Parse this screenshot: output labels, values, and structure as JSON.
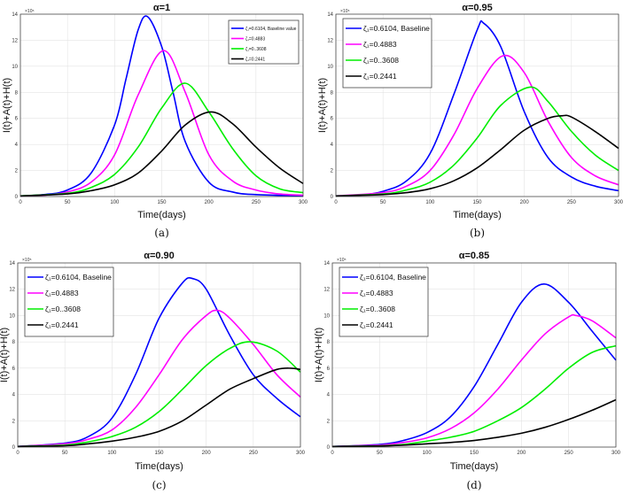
{
  "chart_data": [
    {
      "type": "line",
      "title": "α=1",
      "caption": "(a)",
      "xlabel": "Time(days)",
      "ylabel": "I(t)+A(t)+H(t)",
      "y_multiplier": "×10⁵",
      "xlim": [
        0,
        300
      ],
      "ylim": [
        0,
        14
      ],
      "xticks": [
        0,
        50,
        100,
        150,
        200,
        250,
        300
      ],
      "yticks": [
        0,
        2,
        4,
        6,
        8,
        10,
        12,
        14
      ],
      "grid": true,
      "legend_position": "top-right",
      "legend_size": "small",
      "series": [
        {
          "name": "ζ₁=0.6104, Baseline value",
          "color": "#0000ff",
          "x": [
            0,
            25,
            50,
            75,
            100,
            112,
            125,
            135,
            150,
            162,
            175,
            200,
            225,
            250,
            300
          ],
          "y": [
            0.05,
            0.15,
            0.5,
            1.8,
            5.5,
            9,
            12.8,
            13.8,
            11.5,
            8,
            4.2,
            1.1,
            0.35,
            0.15,
            0.05
          ]
        },
        {
          "name": "ζ₁=0.4883",
          "color": "#ff00ff",
          "x": [
            0,
            25,
            50,
            75,
            100,
            125,
            152,
            175,
            200,
            225,
            250,
            275,
            300
          ],
          "y": [
            0.05,
            0.1,
            0.35,
            1.1,
            3.2,
            7.8,
            11.2,
            8,
            3.2,
            1.2,
            0.5,
            0.2,
            0.1
          ]
        },
        {
          "name": "ζ₁=0..3608",
          "color": "#00ee00",
          "x": [
            0,
            50,
            75,
            100,
            125,
            150,
            175,
            200,
            225,
            250,
            275,
            300
          ],
          "y": [
            0.05,
            0.25,
            0.7,
            1.7,
            3.8,
            6.8,
            8.7,
            6.5,
            3.7,
            1.6,
            0.6,
            0.3
          ]
        },
        {
          "name": "ζ₁=0.2441",
          "color": "#000000",
          "x": [
            0,
            50,
            75,
            100,
            125,
            150,
            175,
            202,
            225,
            250,
            275,
            300
          ],
          "y": [
            0.05,
            0.2,
            0.45,
            0.9,
            1.8,
            3.5,
            5.5,
            6.5,
            5.6,
            3.8,
            2.2,
            1.0
          ]
        }
      ]
    },
    {
      "type": "line",
      "title": "α=0.95",
      "caption": "(b)",
      "xlabel": "Time(days)",
      "ylabel": "I(t)+A(t)+H(t)",
      "y_multiplier": "×10⁵",
      "xlim": [
        0,
        300
      ],
      "ylim": [
        0,
        14
      ],
      "xticks": [
        0,
        50,
        100,
        150,
        200,
        250,
        300
      ],
      "yticks": [
        0,
        2,
        4,
        6,
        8,
        10,
        12,
        14
      ],
      "grid": true,
      "legend_position": "top-left",
      "series": [
        {
          "name": "ζ₁=0.6104, Baseline",
          "color": "#0000ff",
          "x": [
            0,
            25,
            50,
            75,
            100,
            125,
            150,
            157,
            175,
            200,
            225,
            250,
            275,
            300
          ],
          "y": [
            0.05,
            0.1,
            0.4,
            1.2,
            3.3,
            7.8,
            12.8,
            13.3,
            11.5,
            6.5,
            3,
            1.5,
            0.8,
            0.45
          ]
        },
        {
          "name": "ζ₁=0.4883",
          "color": "#ff00ff",
          "x": [
            0,
            50,
            75,
            100,
            125,
            150,
            177,
            200,
            225,
            250,
            275,
            300
          ],
          "y": [
            0.05,
            0.3,
            0.8,
            2,
            4.7,
            8.3,
            10.8,
            9.5,
            5.8,
            3,
            1.6,
            0.9
          ]
        },
        {
          "name": "ζ₁=0..3608",
          "color": "#00ee00",
          "x": [
            0,
            50,
            75,
            100,
            125,
            150,
            175,
            206,
            225,
            250,
            275,
            300
          ],
          "y": [
            0.05,
            0.2,
            0.5,
            1.1,
            2.4,
            4.5,
            7,
            8.4,
            7.3,
            5,
            3.2,
            2
          ]
        },
        {
          "name": "ζ₁=0.2441",
          "color": "#000000",
          "x": [
            0,
            50,
            75,
            100,
            125,
            150,
            175,
            200,
            225,
            240,
            250,
            275,
            300
          ],
          "y": [
            0.05,
            0.15,
            0.3,
            0.6,
            1.2,
            2.2,
            3.6,
            5.1,
            6,
            6.2,
            6.1,
            5,
            3.7
          ]
        }
      ]
    },
    {
      "type": "line",
      "title": "α=0.90",
      "caption": "(c)",
      "xlabel": "Time(days)",
      "ylabel": "I(t)+A(t)+H(t)",
      "y_multiplier": "×10⁵",
      "xlim": [
        0,
        300
      ],
      "ylim": [
        0,
        14
      ],
      "xticks": [
        0,
        50,
        100,
        150,
        200,
        250,
        300
      ],
      "yticks": [
        0,
        2,
        4,
        6,
        8,
        10,
        12,
        14
      ],
      "grid": true,
      "legend_position": "top-left",
      "series": [
        {
          "name": "ζ₁=0.6104, Baseline",
          "color": "#0000ff",
          "x": [
            0,
            50,
            75,
            100,
            125,
            150,
            175,
            186,
            200,
            225,
            250,
            275,
            300
          ],
          "y": [
            0.05,
            0.3,
            0.8,
            2.2,
            5.5,
            9.8,
            12.5,
            12.8,
            12,
            8.5,
            5.5,
            3.7,
            2.3
          ]
        },
        {
          "name": "ζ₁=0.4883",
          "color": "#ff00ff",
          "x": [
            0,
            50,
            75,
            100,
            125,
            150,
            175,
            200,
            212,
            225,
            250,
            275,
            300
          ],
          "y": [
            0.05,
            0.25,
            0.6,
            1.3,
            3,
            5.5,
            8.2,
            10,
            10.4,
            9.8,
            7.8,
            5.5,
            3.8
          ]
        },
        {
          "name": "ζ₁=0..3608",
          "color": "#00ee00",
          "x": [
            0,
            50,
            75,
            100,
            125,
            150,
            175,
            200,
            225,
            247,
            275,
            300
          ],
          "y": [
            0.05,
            0.15,
            0.4,
            0.8,
            1.5,
            2.7,
            4.4,
            6.2,
            7.5,
            8,
            7.3,
            5.7
          ]
        },
        {
          "name": "ζ₁=0.2441",
          "color": "#000000",
          "x": [
            0,
            50,
            75,
            100,
            125,
            150,
            175,
            200,
            225,
            250,
            275,
            290,
            300
          ],
          "y": [
            0.05,
            0.1,
            0.25,
            0.45,
            0.75,
            1.2,
            2,
            3.2,
            4.4,
            5.2,
            5.9,
            6,
            5.9
          ]
        }
      ]
    },
    {
      "type": "line",
      "title": "α=0.85",
      "caption": "(d)",
      "xlabel": "Time(days)",
      "ylabel": "I(t)+A(t)+H(t)",
      "y_multiplier": "×10⁵",
      "xlim": [
        0,
        300
      ],
      "ylim": [
        0,
        14
      ],
      "xticks": [
        0,
        50,
        100,
        150,
        200,
        250,
        300
      ],
      "yticks": [
        0,
        2,
        4,
        6,
        8,
        10,
        12,
        14
      ],
      "grid": true,
      "legend_position": "top-left",
      "series": [
        {
          "name": "ζ₁=0.6104, Baseline",
          "color": "#0000ff",
          "x": [
            0,
            50,
            75,
            100,
            125,
            150,
            175,
            200,
            224,
            250,
            275,
            300
          ],
          "y": [
            0.05,
            0.2,
            0.5,
            1.1,
            2.3,
            4.6,
            7.8,
            11,
            12.4,
            11,
            8.8,
            6.6
          ]
        },
        {
          "name": "ζ₁=0.4883",
          "color": "#ff00ff",
          "x": [
            0,
            50,
            75,
            100,
            125,
            150,
            175,
            200,
            225,
            250,
            258,
            275,
            300
          ],
          "y": [
            0.05,
            0.15,
            0.35,
            0.7,
            1.4,
            2.6,
            4.4,
            6.6,
            8.6,
            9.9,
            10,
            9.6,
            8.3
          ]
        },
        {
          "name": "ζ₁=0..3608",
          "color": "#00ee00",
          "x": [
            0,
            50,
            75,
            100,
            125,
            150,
            175,
            200,
            225,
            250,
            275,
            300
          ],
          "y": [
            0.05,
            0.1,
            0.2,
            0.45,
            0.75,
            1.2,
            2,
            3,
            4.4,
            6,
            7.2,
            7.7
          ]
        },
        {
          "name": "ζ₁=0.2441",
          "color": "#000000",
          "x": [
            0,
            50,
            75,
            100,
            125,
            150,
            175,
            200,
            225,
            250,
            275,
            300
          ],
          "y": [
            0.05,
            0.08,
            0.15,
            0.25,
            0.35,
            0.5,
            0.75,
            1.05,
            1.5,
            2.1,
            2.8,
            3.6
          ]
        }
      ]
    }
  ]
}
